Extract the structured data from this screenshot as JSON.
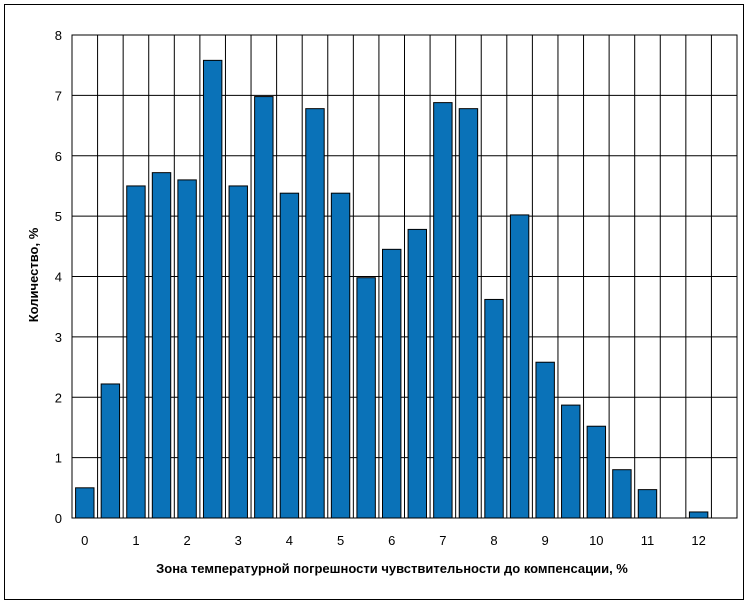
{
  "chart_data": {
    "type": "bar",
    "title": "",
    "xlabel": "Зона температурной погрешности чувствительности до компенсации, %",
    "ylabel": "Количество, %",
    "ylim": [
      0,
      8
    ],
    "yticks": [
      "0",
      "1",
      "2",
      "3",
      "4",
      "5",
      "6",
      "7",
      "8"
    ],
    "xticks": [
      "0",
      "1",
      "2",
      "3",
      "4",
      "5",
      "6",
      "7",
      "8",
      "9",
      "10",
      "11",
      "12"
    ],
    "xlim": [
      0,
      12
    ],
    "bar_width_data": 0.36,
    "grid": true,
    "bar_color": "#0A72B8",
    "bar_edge_color": "#000000",
    "x": [
      0,
      0.5,
      1,
      1.5,
      2,
      2.5,
      3,
      3.5,
      4,
      4.5,
      5,
      5.5,
      6,
      6.5,
      7,
      7.5,
      8,
      8.5,
      9,
      9.5,
      10,
      10.5,
      11,
      11.5,
      12
    ],
    "values": [
      0.5,
      2.22,
      5.5,
      5.72,
      5.6,
      7.58,
      5.5,
      6.98,
      5.38,
      6.78,
      5.38,
      3.98,
      4.45,
      4.78,
      6.88,
      6.78,
      3.62,
      5.02,
      2.58,
      1.87,
      1.52,
      0.8,
      0.47,
      0.0,
      0.1
    ]
  }
}
